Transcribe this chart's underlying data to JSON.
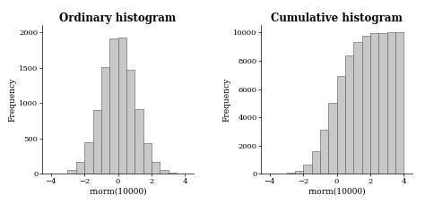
{
  "bar_color": "#c8c8c8",
  "bar_edgecolor": "#555555",
  "title1": "Ordinary histogram",
  "title2": "Cumulative histogram",
  "xlabel": "rnorm(10000)",
  "ylabel": "Frequency",
  "xlim": [
    -4.5,
    4.5
  ],
  "ylim1": [
    0,
    2100
  ],
  "ylim2": [
    0,
    10500
  ],
  "yticks1": [
    0,
    500,
    1000,
    1500,
    2000
  ],
  "yticks2": [
    0,
    2000,
    4000,
    6000,
    8000,
    10000
  ],
  "xticks": [
    -4,
    -2,
    0,
    2,
    4
  ],
  "background_color": "#ffffff",
  "title_fontsize": 8.5,
  "label_fontsize": 6.5,
  "tick_fontsize": 6.0,
  "bar_linewidth": 0.4,
  "seed": 42
}
